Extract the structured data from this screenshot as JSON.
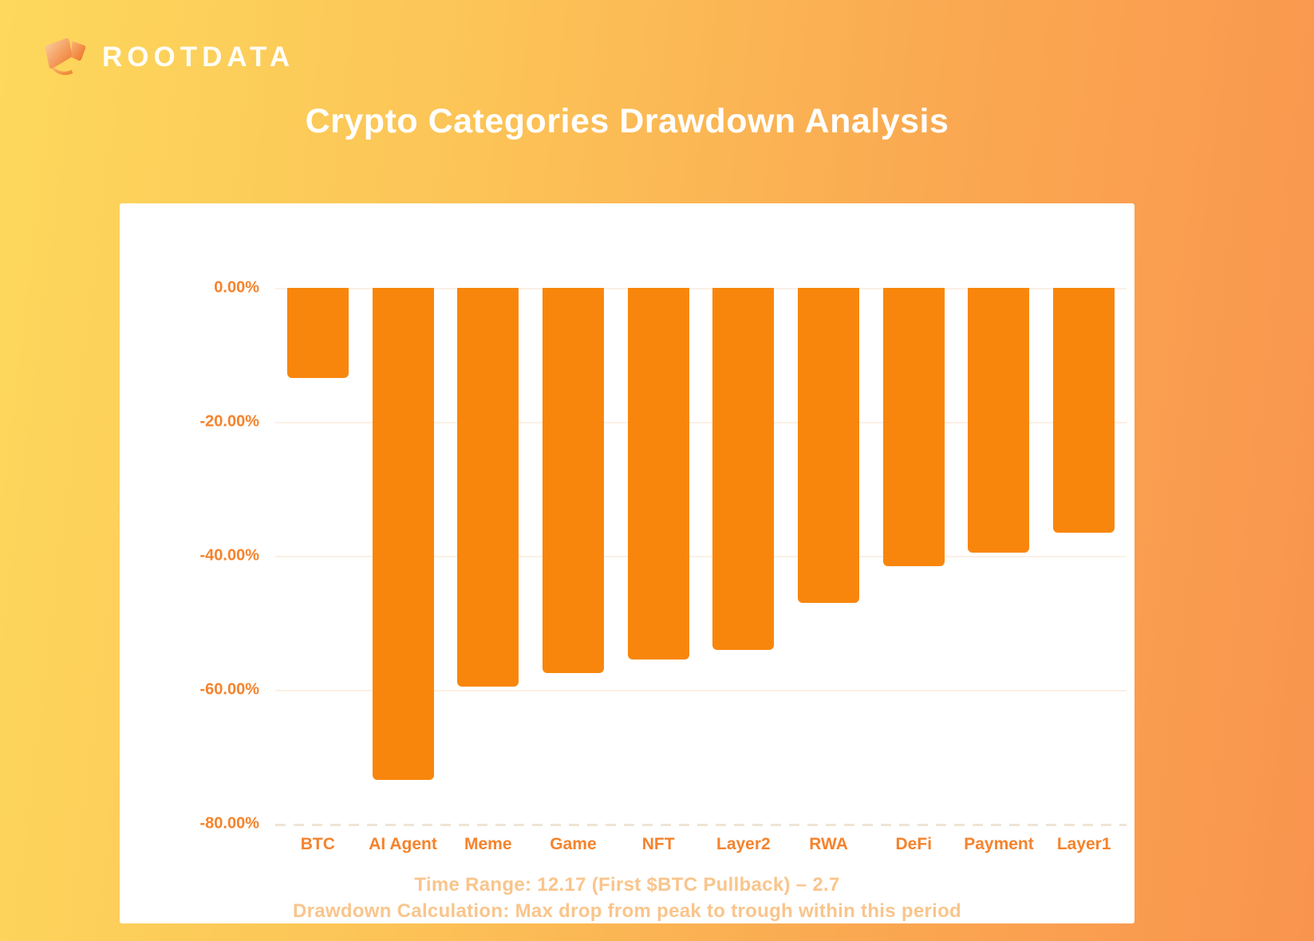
{
  "brand": {
    "logo_text": "ROOTDATA"
  },
  "title": "Crypto Categories Drawdown Analysis",
  "chart_data": {
    "type": "bar",
    "title": "Crypto Categories Drawdown Analysis",
    "categories": [
      "BTC",
      "AI Agent",
      "Meme",
      "Game",
      "NFT",
      "Layer2",
      "RWA",
      "DeFi",
      "Payment",
      "Layer1"
    ],
    "values": [
      -13.5,
      -73.5,
      -59.5,
      -57.5,
      -55.5,
      -54,
      -47,
      -41.5,
      -39.5,
      -36.5
    ],
    "value_unit": "%",
    "xlabel": "",
    "ylabel": "",
    "ylim": [
      -80,
      0
    ],
    "y_ticks": [
      "0.00%",
      "-20.00%",
      "-40.00%",
      "-60.00%",
      "-80.00%"
    ],
    "grid": true,
    "legend": "none",
    "bar_color": "#F8860D",
    "axis_label_color": "#F5832C"
  },
  "footer": {
    "line1": "Time Range: 12.17 (First $BTC Pullback) – 2.7",
    "line2": "Drawdown Calculation: Max drop from peak to trough within this period"
  },
  "colors": {
    "background_gradient_start": "#FDD85C",
    "background_gradient_end": "#F9944E",
    "card_background": "#FFFFFF",
    "title_color": "#FFFFFF",
    "bar_color": "#F8860D",
    "axis_text_color": "#F5832C",
    "footer_text_color": "#F9C58C",
    "gridline_color": "#FBF0E5",
    "baseline_dash_color": "#EFE5D6"
  }
}
